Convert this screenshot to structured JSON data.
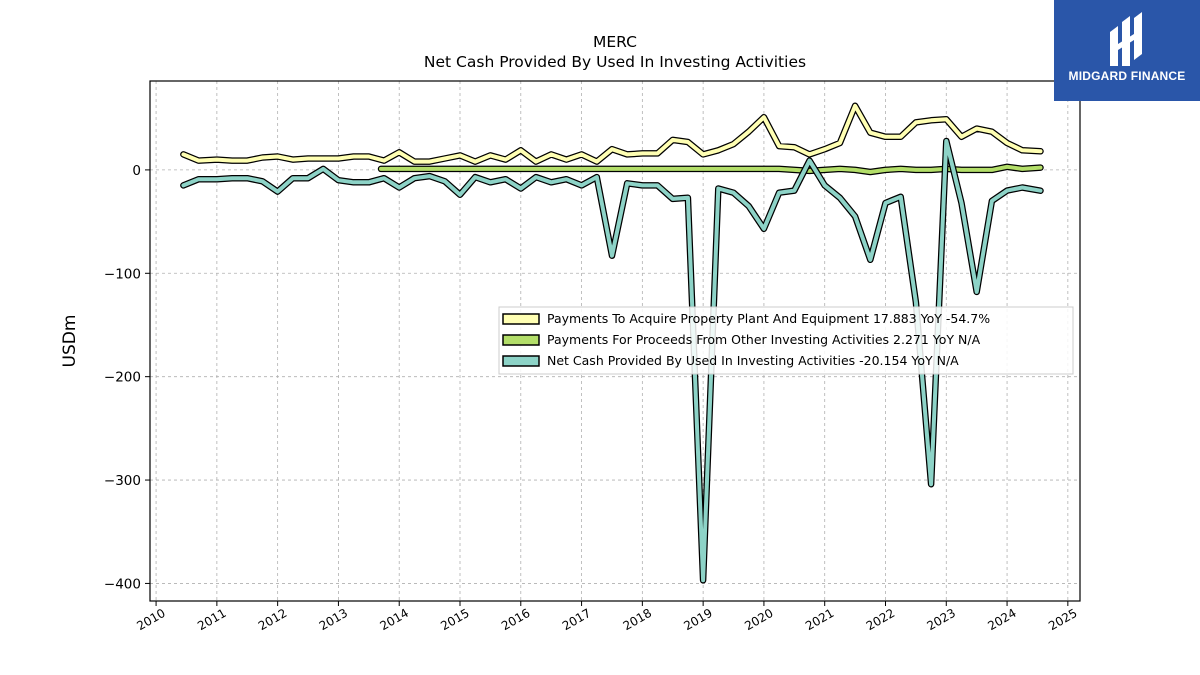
{
  "logo": {
    "brand": "MIDGARD FINANCE"
  },
  "chart_data": {
    "type": "line",
    "title": "MERC",
    "subtitle": "Net Cash Provided By Used In Investing Activities",
    "xlabel": "",
    "ylabel": "USDm",
    "xlim": [
      2009.9,
      2025.2
    ],
    "ylim": [
      -417,
      86
    ],
    "x_ticks": [
      2010,
      2011,
      2012,
      2013,
      2014,
      2015,
      2016,
      2017,
      2018,
      2019,
      2020,
      2021,
      2022,
      2023,
      2024,
      2025
    ],
    "y_ticks": [
      0,
      -100,
      -200,
      -300,
      -400
    ],
    "y_tick_labels": [
      "0",
      "−100",
      "−200",
      "−300",
      "−400"
    ],
    "grid": true,
    "legend_position": "center-right",
    "legend": [
      "Payments To Acquire Property Plant And Equipment  17.883 YoY -54.7%",
      "Payments For Proceeds From Other Investing Activities  2.271 YoY N/A",
      "Net Cash Provided By Used In Investing Activities  -20.154 YoY N/A"
    ],
    "series": [
      {
        "name": "Payments To Acquire Property Plant And Equipment",
        "color": "#ffffb3",
        "points": [
          [
            2010.45,
            15
          ],
          [
            2010.7,
            9
          ],
          [
            2011.0,
            10
          ],
          [
            2011.25,
            9
          ],
          [
            2011.5,
            9
          ],
          [
            2011.75,
            12
          ],
          [
            2012.0,
            13
          ],
          [
            2012.25,
            10
          ],
          [
            2012.5,
            11
          ],
          [
            2012.75,
            11
          ],
          [
            2013.0,
            11
          ],
          [
            2013.25,
            13
          ],
          [
            2013.5,
            13
          ],
          [
            2013.75,
            9
          ],
          [
            2014.0,
            17
          ],
          [
            2014.25,
            8
          ],
          [
            2014.5,
            8
          ],
          [
            2014.75,
            11
          ],
          [
            2015.0,
            14
          ],
          [
            2015.25,
            8
          ],
          [
            2015.5,
            14
          ],
          [
            2015.75,
            10
          ],
          [
            2016.0,
            19
          ],
          [
            2016.25,
            8
          ],
          [
            2016.5,
            15
          ],
          [
            2016.75,
            10
          ],
          [
            2017.0,
            15
          ],
          [
            2017.25,
            8
          ],
          [
            2017.5,
            20
          ],
          [
            2017.75,
            15
          ],
          [
            2018.0,
            16
          ],
          [
            2018.25,
            16
          ],
          [
            2018.5,
            29
          ],
          [
            2018.75,
            27
          ],
          [
            2019.0,
            15
          ],
          [
            2019.25,
            19
          ],
          [
            2019.5,
            25
          ],
          [
            2019.75,
            37
          ],
          [
            2020.0,
            51
          ],
          [
            2020.25,
            23
          ],
          [
            2020.5,
            22
          ],
          [
            2020.75,
            15
          ],
          [
            2021.0,
            20
          ],
          [
            2021.25,
            26
          ],
          [
            2021.5,
            62
          ],
          [
            2021.75,
            36
          ],
          [
            2022.0,
            32
          ],
          [
            2022.25,
            32
          ],
          [
            2022.5,
            46
          ],
          [
            2022.75,
            48
          ],
          [
            2023.0,
            49
          ],
          [
            2023.25,
            32
          ],
          [
            2023.5,
            40
          ],
          [
            2023.75,
            37
          ],
          [
            2024.0,
            26
          ],
          [
            2024.25,
            19
          ],
          [
            2024.55,
            18
          ]
        ]
      },
      {
        "name": "Payments For Proceeds From Other Investing Activities",
        "color": "#b3de69",
        "points": [
          [
            2013.7,
            1
          ],
          [
            2014.0,
            1
          ],
          [
            2014.25,
            1
          ],
          [
            2014.5,
            1
          ],
          [
            2014.75,
            1
          ],
          [
            2015.0,
            1
          ],
          [
            2015.25,
            1
          ],
          [
            2015.5,
            1
          ],
          [
            2015.75,
            1
          ],
          [
            2016.0,
            1
          ],
          [
            2016.25,
            1
          ],
          [
            2016.5,
            1
          ],
          [
            2016.75,
            1
          ],
          [
            2017.0,
            1
          ],
          [
            2017.25,
            1
          ],
          [
            2017.5,
            1
          ],
          [
            2017.75,
            1
          ],
          [
            2018.0,
            1
          ],
          [
            2018.25,
            1
          ],
          [
            2018.5,
            1
          ],
          [
            2018.75,
            1
          ],
          [
            2019.0,
            1
          ],
          [
            2019.25,
            1
          ],
          [
            2019.5,
            1
          ],
          [
            2019.75,
            1
          ],
          [
            2020.0,
            1
          ],
          [
            2020.25,
            1
          ],
          [
            2020.5,
            0
          ],
          [
            2020.75,
            -1
          ],
          [
            2021.0,
            0
          ],
          [
            2021.25,
            1
          ],
          [
            2021.5,
            0
          ],
          [
            2021.75,
            -2
          ],
          [
            2022.0,
            0
          ],
          [
            2022.25,
            1
          ],
          [
            2022.5,
            0
          ],
          [
            2022.75,
            0
          ],
          [
            2023.0,
            1
          ],
          [
            2023.25,
            0
          ],
          [
            2023.5,
            0
          ],
          [
            2023.75,
            0
          ],
          [
            2024.0,
            3
          ],
          [
            2024.25,
            1
          ],
          [
            2024.55,
            2.271
          ]
        ]
      },
      {
        "name": "Net Cash Provided By Used In Investing Activities",
        "color": "#8dd3c7",
        "points": [
          [
            2010.45,
            -15
          ],
          [
            2010.7,
            -9
          ],
          [
            2011.0,
            -9
          ],
          [
            2011.25,
            -8
          ],
          [
            2011.5,
            -8
          ],
          [
            2011.75,
            -11
          ],
          [
            2012.0,
            -21
          ],
          [
            2012.25,
            -8
          ],
          [
            2012.5,
            -8
          ],
          [
            2012.75,
            1
          ],
          [
            2013.0,
            -10
          ],
          [
            2013.25,
            -12
          ],
          [
            2013.5,
            -12
          ],
          [
            2013.75,
            -8
          ],
          [
            2014.0,
            -17
          ],
          [
            2014.25,
            -8
          ],
          [
            2014.5,
            -6
          ],
          [
            2014.75,
            -11
          ],
          [
            2015.0,
            -24
          ],
          [
            2015.25,
            -7
          ],
          [
            2015.5,
            -12
          ],
          [
            2015.75,
            -9
          ],
          [
            2016.0,
            -18
          ],
          [
            2016.25,
            -7
          ],
          [
            2016.5,
            -12
          ],
          [
            2016.75,
            -9
          ],
          [
            2017.0,
            -15
          ],
          [
            2017.25,
            -7
          ],
          [
            2017.5,
            -83
          ],
          [
            2017.75,
            -13
          ],
          [
            2018.0,
            -15
          ],
          [
            2018.25,
            -15
          ],
          [
            2018.5,
            -28
          ],
          [
            2018.75,
            -27
          ],
          [
            2019.0,
            -397
          ],
          [
            2019.25,
            -18
          ],
          [
            2019.5,
            -22
          ],
          [
            2019.75,
            -35
          ],
          [
            2020.0,
            -57
          ],
          [
            2020.25,
            -22
          ],
          [
            2020.5,
            -20
          ],
          [
            2020.75,
            9
          ],
          [
            2021.0,
            -15
          ],
          [
            2021.25,
            -27
          ],
          [
            2021.5,
            -45
          ],
          [
            2021.75,
            -87
          ],
          [
            2022.0,
            -32
          ],
          [
            2022.25,
            -26
          ],
          [
            2022.5,
            -128
          ],
          [
            2022.75,
            -304
          ],
          [
            2023.0,
            28
          ],
          [
            2023.25,
            -32
          ],
          [
            2023.5,
            -118
          ],
          [
            2023.75,
            -30
          ],
          [
            2024.0,
            -20
          ],
          [
            2024.25,
            -17
          ],
          [
            2024.55,
            -20.154
          ]
        ]
      }
    ]
  }
}
